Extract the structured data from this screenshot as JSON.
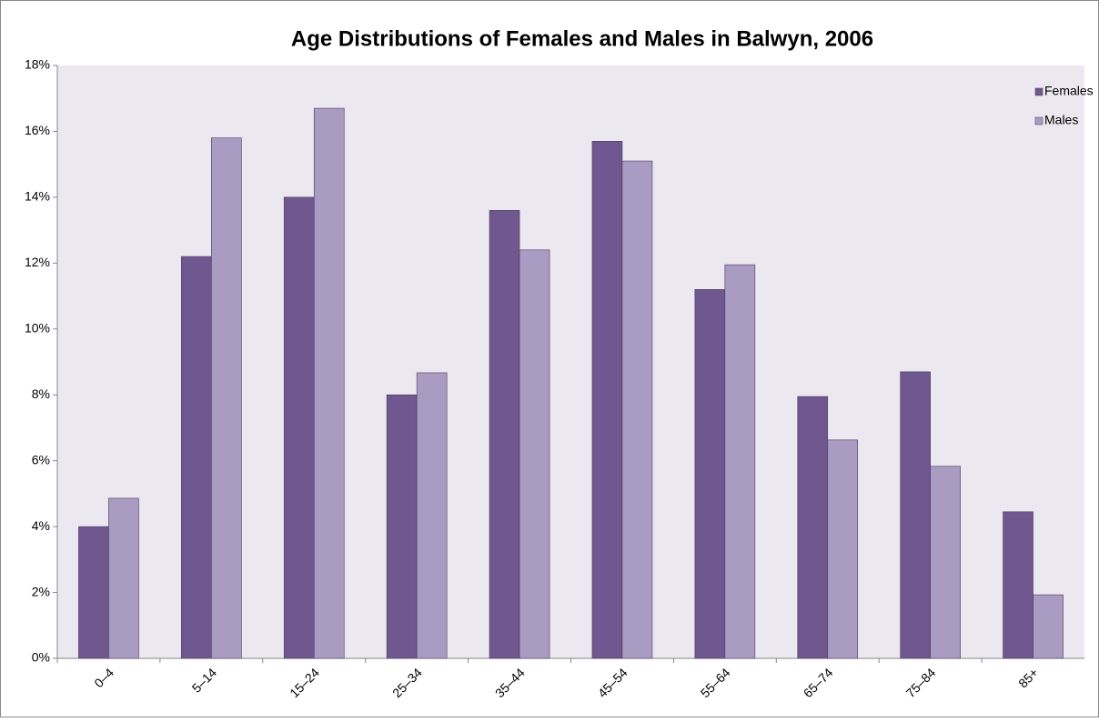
{
  "chart_data": {
    "type": "bar",
    "title": "Age Distributions of Females and Males in Balwyn, 2006",
    "categories": [
      "0–4",
      "5–14",
      "15–24",
      "25–34",
      "35–44",
      "45–54",
      "55–64",
      "65–74",
      "75–84",
      "85+"
    ],
    "series": [
      {
        "name": "Females",
        "color": "#70578f",
        "values": [
          4.0,
          12.2,
          14.0,
          8.0,
          13.6,
          15.7,
          11.2,
          7.95,
          8.7,
          4.45
        ]
      },
      {
        "name": "Males",
        "color": "#a99bc1",
        "values": [
          4.86,
          15.8,
          16.7,
          8.67,
          12.4,
          15.1,
          11.95,
          6.63,
          5.83,
          1.93
        ]
      }
    ],
    "ylim": [
      0,
      18
    ],
    "yticks": [
      {
        "value": 0,
        "label": "0%"
      },
      {
        "value": 2,
        "label": "2%"
      },
      {
        "value": 4,
        "label": "4%"
      },
      {
        "value": 6,
        "label": "6%"
      },
      {
        "value": 8,
        "label": "8%"
      },
      {
        "value": 10,
        "label": "10%"
      },
      {
        "value": 12,
        "label": "12%"
      },
      {
        "value": 14,
        "label": "14%"
      },
      {
        "value": 16,
        "label": "16%"
      },
      {
        "value": 18,
        "label": "18%"
      }
    ],
    "grid": false,
    "legend": "top-right"
  }
}
